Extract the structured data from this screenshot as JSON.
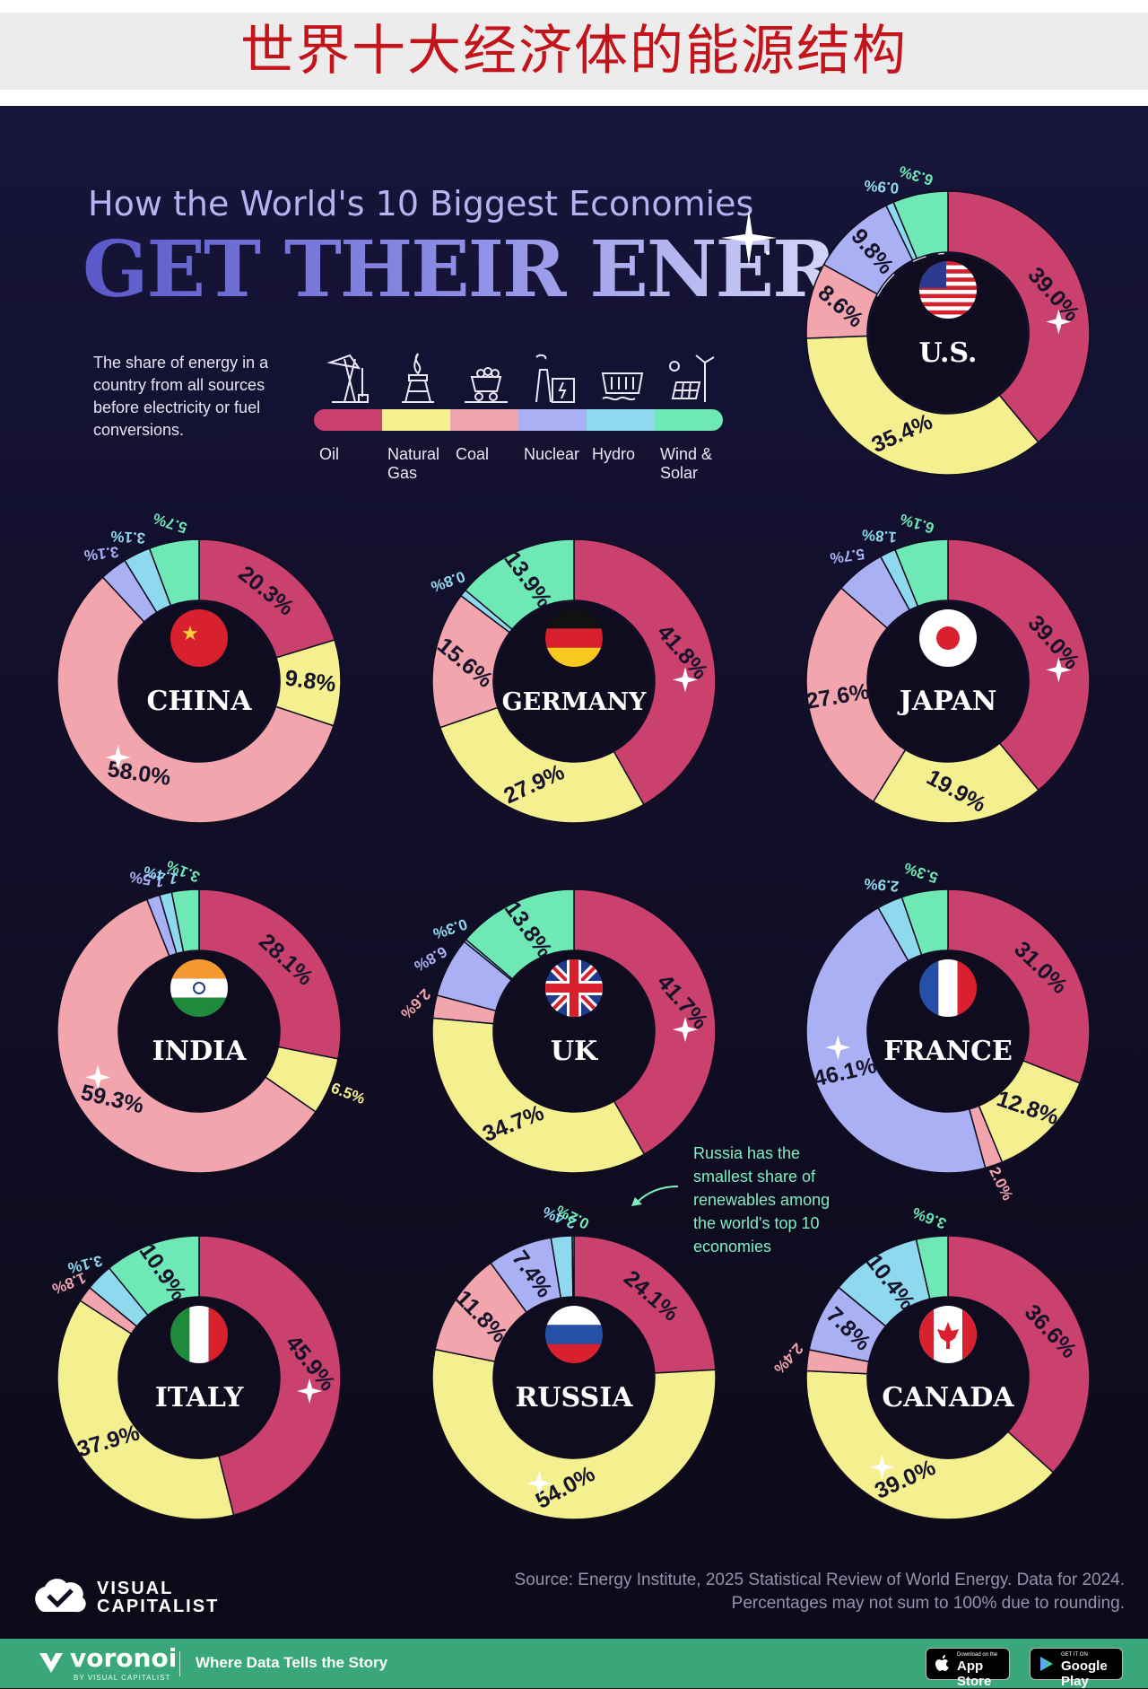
{
  "banner": {
    "title": "世界十大经济体的能源结构"
  },
  "header": {
    "subtitle": "How the World's 10 Biggest Economies",
    "title": "GET THEIR ENERGY"
  },
  "description": "The share of energy in a country from all sources before electricity or fuel conversions.",
  "legend": [
    {
      "label": "Oil",
      "color": "#c9416c",
      "icon": "oil-pump-icon"
    },
    {
      "label": "Natural Gas",
      "color": "#f4ef8f",
      "icon": "gas-flame-icon"
    },
    {
      "label": "Coal",
      "color": "#f2a5ad",
      "icon": "coal-cart-icon"
    },
    {
      "label": "Nuclear",
      "color": "#a9b0f3",
      "icon": "nuclear-plant-icon"
    },
    {
      "label": "Hydro",
      "color": "#8fd9ee",
      "icon": "hydro-dam-icon"
    },
    {
      "label": "Wind & Solar",
      "color": "#6ee8b5",
      "icon": "wind-solar-icon"
    }
  ],
  "chart_data": {
    "type": "pie",
    "title": "How the World's 10 Biggest Economies GET THEIR ENERGY",
    "categories": [
      "Oil",
      "Natural Gas",
      "Coal",
      "Nuclear",
      "Hydro",
      "Wind & Solar"
    ],
    "series": [
      {
        "name": "U.S.",
        "values": [
          39.0,
          35.4,
          8.6,
          9.8,
          0.9,
          6.3
        ],
        "labels": [
          "39.0%",
          "35.4%",
          "8.6%",
          "9.8%",
          "0.9%",
          "6.3%"
        ]
      },
      {
        "name": "CHINA",
        "values": [
          20.3,
          9.8,
          58.0,
          3.1,
          3.1,
          5.7
        ],
        "labels": [
          "20.3%",
          "9.8%",
          "58.0%",
          "3.1%",
          "3.1%",
          "5.7%"
        ]
      },
      {
        "name": "GERMANY",
        "values": [
          41.8,
          27.9,
          15.6,
          0,
          0.8,
          13.9
        ],
        "labels": [
          "41.8%",
          "27.9%",
          "15.6%",
          "",
          "0.8%",
          "13.9%"
        ]
      },
      {
        "name": "JAPAN",
        "values": [
          39.0,
          19.9,
          27.6,
          5.7,
          1.8,
          6.1
        ],
        "labels": [
          "39.0%",
          "19.9%",
          "27.6%",
          "5.7%",
          "1.8%",
          "6.1%"
        ]
      },
      {
        "name": "INDIA",
        "values": [
          28.1,
          6.5,
          59.3,
          1.5,
          1.4,
          3.1
        ],
        "labels": [
          "28.1%",
          "6.5%",
          "59.3%",
          "1.5%",
          "1.4%",
          "3.1%"
        ]
      },
      {
        "name": "UK",
        "values": [
          41.7,
          34.7,
          2.6,
          6.8,
          0.3,
          13.8
        ],
        "labels": [
          "41.7%",
          "34.7%",
          "2.6%",
          "6.8%",
          "0.3%",
          "13.8%"
        ]
      },
      {
        "name": "FRANCE",
        "values": [
          31.0,
          12.8,
          2.0,
          46.1,
          2.9,
          5.3
        ],
        "labels": [
          "31.0%",
          "12.8%",
          "2.0%",
          "46.1%",
          "2.9%",
          "5.3%"
        ]
      },
      {
        "name": "ITALY",
        "values": [
          45.9,
          37.9,
          1.8,
          0,
          3.1,
          10.9
        ],
        "labels": [
          "45.9%",
          "37.9%",
          "1.8%",
          "",
          "3.1%",
          "10.9%"
        ]
      },
      {
        "name": "RUSSIA",
        "values": [
          24.1,
          54.0,
          11.8,
          7.4,
          2.4,
          0.2
        ],
        "labels": [
          "24.1%",
          "54.0%",
          "11.8%",
          "7.4%",
          "2.4%",
          "0.2%"
        ]
      },
      {
        "name": "CANADA",
        "values": [
          36.6,
          39.0,
          2.4,
          7.8,
          10.4,
          3.6
        ],
        "labels": [
          "36.6%",
          "39.0%",
          "2.4%",
          "7.8%",
          "10.4%",
          "3.6%"
        ]
      }
    ]
  },
  "annotation": "Russia has the smallest share of renewables among the world's top 10 economies",
  "source": {
    "line1": "Source: Energy Institute, 2025 Statistical Review of World Energy. Data for 2024.",
    "line2": "Percentages may not sum to 100% due to rounding."
  },
  "logo": {
    "line1": "VISUAL",
    "line2": "CAPITALIST"
  },
  "footer": {
    "brand": "voronoi",
    "brand_sub": "BY VISUAL CAPITALIST",
    "tagline": "Where Data Tells the Story",
    "appstore_small": "Download on the",
    "appstore_big": "App Store",
    "googleplay_small": "GET IT ON",
    "googleplay_big": "Google Play"
  }
}
